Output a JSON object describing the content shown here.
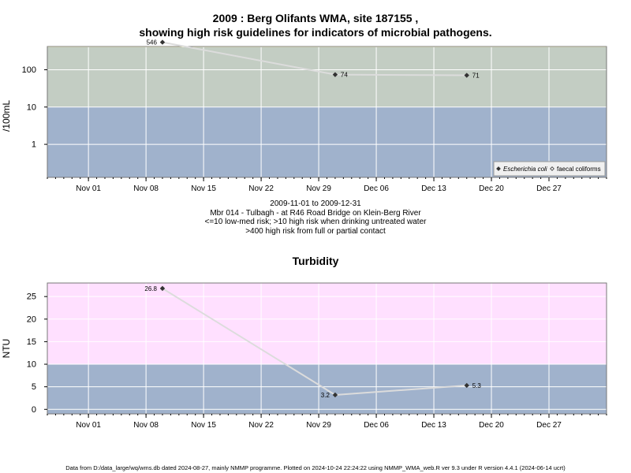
{
  "header": {
    "title_line1": "2009 : Berg Olifants WMA, site 187155 ,",
    "title_line2": "showing high risk guidelines for indicators of microbial pathogens."
  },
  "caption": {
    "line1": "2009-11-01 to 2009-12-31",
    "line2": "Mbr 014 - Tulbagh - at R46 Road Bridge on Klein-Berg River",
    "line3": "<=10 low-med risk; >10 high risk when drinking untreated water",
    "line4": ">400 high risk from full or partial contact"
  },
  "footer": {
    "text": "Data from D:/data_large/wq/wms.db dated 2024-08-27, mainly NMMP programme. Plotted on 2024-10-24 22:24:22 using NMMP_WMA_web.R ver 9.3 under R version 4.4.1 (2024-06-14 ucrt)"
  },
  "colors": {
    "band_low": "#a0b2cc",
    "band_mid": "#c3cdc3",
    "band_high_micro": "#ffffcc",
    "band_high_turb": "#ffe0ff",
    "line": "#dcdcdc",
    "marker": "#333333",
    "grid": "#ffffff"
  },
  "chart_data": [
    {
      "type": "line",
      "title": "",
      "ylabel": "/100mL",
      "yscale": "log",
      "ylim": [
        0.13,
        420
      ],
      "x_axis": {
        "range": [
          "2009-10-27",
          "2010-01-03"
        ],
        "tick_dates": [
          "2009-11-01",
          "2009-11-08",
          "2009-11-15",
          "2009-11-22",
          "2009-11-29",
          "2009-12-06",
          "2009-12-13",
          "2009-12-20",
          "2009-12-27"
        ],
        "tick_labels": [
          "Nov 01",
          "Nov 08",
          "Nov 15",
          "Nov 22",
          "Nov 29",
          "Dec 06",
          "Dec 13",
          "Dec 20",
          "Dec 27"
        ]
      },
      "y_ticks": [
        1,
        10,
        100
      ],
      "y_tick_labels": [
        "1",
        "10",
        "100"
      ],
      "bands": [
        {
          "from": 0.13,
          "to": 10,
          "color": "low"
        },
        {
          "from": 10,
          "to": 400,
          "color": "mid"
        },
        {
          "from": 400,
          "to": 420,
          "color": "high"
        }
      ],
      "series": [
        {
          "name": "Escherichia coli",
          "x": [
            "2009-11-10",
            "2009-12-01",
            "2009-12-17"
          ],
          "y": [
            546,
            74,
            71
          ],
          "labels": [
            "546",
            "74",
            "71"
          ],
          "marker": "filled-diamond"
        }
      ],
      "legend": {
        "position": "bottom-right",
        "entries": [
          {
            "label": "Escherichia coli",
            "marker": "filled-diamond"
          },
          {
            "label": "faecal coliforms",
            "marker": "open-diamond"
          }
        ]
      },
      "grid": true
    },
    {
      "type": "line",
      "title": "Turbidity",
      "ylabel": "NTU",
      "ylim": [
        -1.0,
        28.0
      ],
      "x_axis": {
        "range": [
          "2009-10-27",
          "2010-01-03"
        ],
        "tick_dates": [
          "2009-11-01",
          "2009-11-08",
          "2009-11-15",
          "2009-11-22",
          "2009-11-29",
          "2009-12-06",
          "2009-12-13",
          "2009-12-20",
          "2009-12-27"
        ],
        "tick_labels": [
          "Nov 01",
          "Nov 08",
          "Nov 15",
          "Nov 22",
          "Nov 29",
          "Dec 06",
          "Dec 13",
          "Dec 20",
          "Dec 27"
        ]
      },
      "y_ticks": [
        0,
        5,
        10,
        15,
        20,
        25
      ],
      "y_tick_labels": [
        "0",
        "5",
        "10",
        "15",
        "20",
        "25"
      ],
      "bands": [
        {
          "from": -1.0,
          "to": 10,
          "color": "low"
        },
        {
          "from": 10,
          "to": 28.0,
          "color": "high_turb"
        }
      ],
      "series": [
        {
          "name": "Turbidity",
          "x": [
            "2009-11-10",
            "2009-12-01",
            "2009-12-17"
          ],
          "y": [
            26.8,
            3.2,
            5.3
          ],
          "labels": [
            "26.8",
            "3.2",
            "5.3"
          ],
          "marker": "filled-diamond"
        }
      ],
      "grid": true
    }
  ]
}
